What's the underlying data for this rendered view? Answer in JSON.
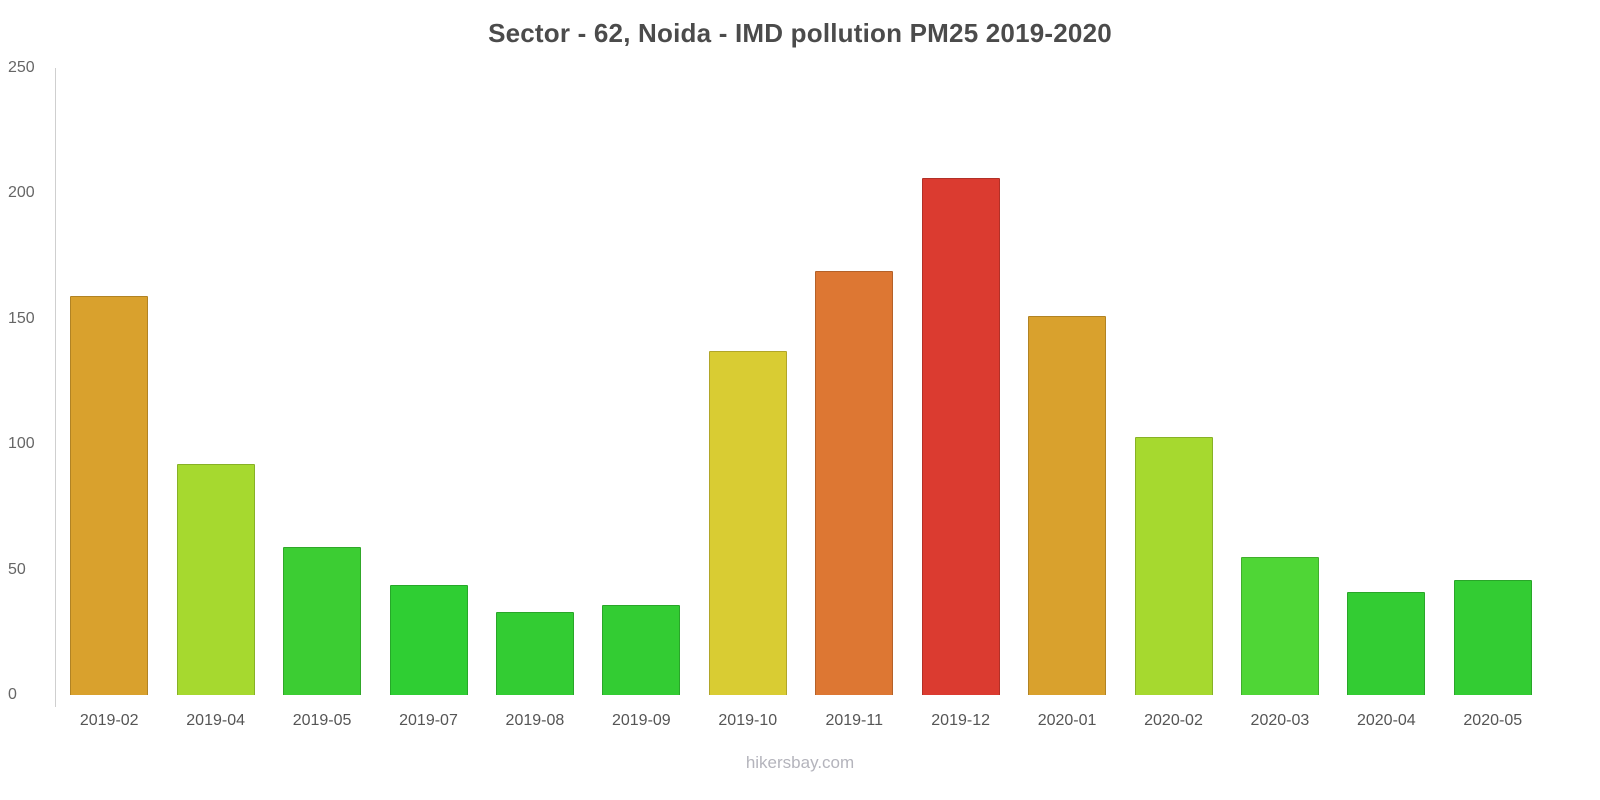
{
  "chart_data": {
    "type": "bar",
    "title": "Sector - 62, Noida - IMD pollution PM25 2019-2020",
    "categories": [
      "2019-02",
      "2019-04",
      "2019-05",
      "2019-07",
      "2019-08",
      "2019-09",
      "2019-10",
      "2019-11",
      "2019-12",
      "2020-01",
      "2020-02",
      "2020-03",
      "2020-04",
      "2020-05"
    ],
    "values": [
      159,
      92,
      59,
      44,
      33,
      36,
      137,
      169,
      206,
      151,
      103,
      55,
      41,
      46
    ],
    "colors": [
      "#D9A12D",
      "#A6D92F",
      "#3CCD33",
      "#2FCE33",
      "#33CC33",
      "#33CC33",
      "#D9CC33",
      "#DD7733",
      "#DB3B30",
      "#D9A12D",
      "#A6D92F",
      "#4FD636",
      "#33CC33",
      "#33CC33"
    ],
    "xlabel": "",
    "ylabel": "",
    "ylim": [
      0,
      250
    ],
    "yticks": [
      0,
      50,
      100,
      150,
      200,
      250
    ],
    "grid": false,
    "legend": "none",
    "footer": "hikersbay.com"
  }
}
